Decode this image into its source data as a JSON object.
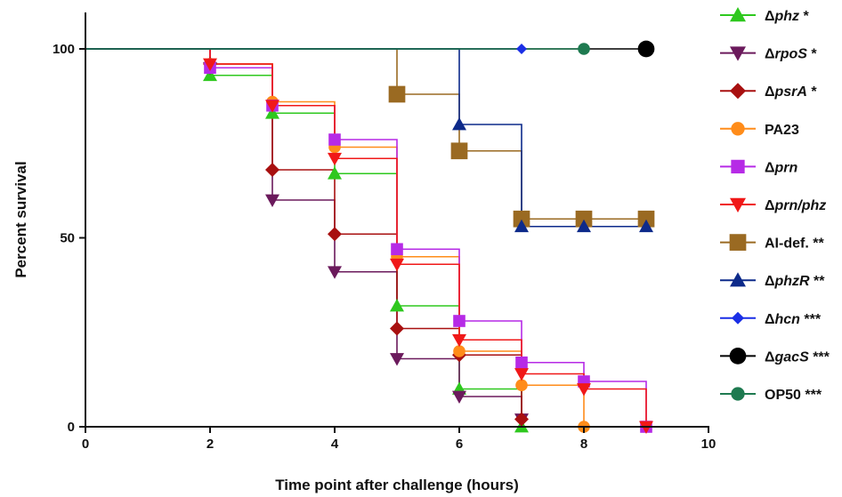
{
  "chart_data": {
    "type": "line",
    "subtype": "kaplan-meier step",
    "title": "",
    "xlabel": "Time point after challenge (hours)",
    "ylabel": "Percent survival",
    "xlim": [
      0,
      10
    ],
    "ylim": [
      0,
      100
    ],
    "xticks": [
      0,
      2,
      4,
      6,
      8,
      10
    ],
    "yticks": [
      0,
      50,
      100
    ],
    "grid": false,
    "legend_position": "right",
    "series": [
      {
        "name": "Δphz *",
        "prefix": "Δ",
        "italic": "phz",
        "suffix": " *",
        "color": "#2ec81e",
        "marker": "triangle-up",
        "points": [
          [
            0,
            100
          ],
          [
            2,
            93
          ],
          [
            3,
            83
          ],
          [
            4,
            67
          ],
          [
            5,
            32
          ],
          [
            6,
            10
          ],
          [
            7,
            0
          ]
        ]
      },
      {
        "name": "ΔrpoS *",
        "prefix": "Δ",
        "italic": "rpoS",
        "suffix": " *",
        "color": "#6b1a5c",
        "marker": "triangle-down",
        "points": [
          [
            0,
            100
          ],
          [
            2,
            95
          ],
          [
            3,
            60
          ],
          [
            4,
            41
          ],
          [
            5,
            18
          ],
          [
            6,
            8
          ],
          [
            7,
            2
          ]
        ]
      },
      {
        "name": "ΔpsrA *",
        "prefix": "Δ",
        "italic": "psrA",
        "suffix": " *",
        "color": "#a81010",
        "marker": "diamond",
        "points": [
          [
            0,
            100
          ],
          [
            2,
            96
          ],
          [
            3,
            68
          ],
          [
            4,
            51
          ],
          [
            5,
            26
          ],
          [
            6,
            19
          ],
          [
            7,
            2
          ]
        ]
      },
      {
        "name": "PA23",
        "prefix": "",
        "italic": "",
        "suffix": "PA23",
        "color": "#ff8c1a",
        "marker": "circle",
        "points": [
          [
            0,
            100
          ],
          [
            2,
            96
          ],
          [
            3,
            86
          ],
          [
            4,
            74
          ],
          [
            5,
            45
          ],
          [
            6,
            20
          ],
          [
            7,
            11
          ],
          [
            8,
            0
          ]
        ]
      },
      {
        "name": "Δprn",
        "prefix": "Δ",
        "italic": "prn",
        "suffix": "",
        "color": "#b62ae6",
        "marker": "square",
        "points": [
          [
            0,
            100
          ],
          [
            2,
            95
          ],
          [
            3,
            85
          ],
          [
            4,
            76
          ],
          [
            5,
            47
          ],
          [
            6,
            28
          ],
          [
            7,
            17
          ],
          [
            8,
            12
          ],
          [
            9,
            0
          ]
        ]
      },
      {
        "name": "Δprn/phz",
        "prefix": "Δ",
        "italic": "prn/phz",
        "suffix": "",
        "color": "#f01818",
        "marker": "triangle-down",
        "points": [
          [
            0,
            100
          ],
          [
            2,
            96
          ],
          [
            3,
            85
          ],
          [
            4,
            71
          ],
          [
            5,
            43
          ],
          [
            6,
            23
          ],
          [
            7,
            14
          ],
          [
            8,
            10
          ],
          [
            9,
            0
          ]
        ]
      },
      {
        "name": "AI-def. **",
        "prefix": "",
        "italic": "",
        "suffix": "AI-def. **",
        "color": "#9a6a22",
        "marker": "square",
        "points": [
          [
            0,
            100
          ],
          [
            5,
            88
          ],
          [
            6,
            73
          ],
          [
            7,
            55
          ],
          [
            8,
            55
          ],
          [
            9,
            55
          ]
        ]
      },
      {
        "name": "ΔphzR **",
        "prefix": "Δ",
        "italic": "phzR",
        "suffix": " **",
        "color": "#0d2a8a",
        "marker": "triangle-up",
        "points": [
          [
            0,
            100
          ],
          [
            6,
            80
          ],
          [
            7,
            53
          ],
          [
            8,
            53
          ],
          [
            9,
            53
          ]
        ]
      },
      {
        "name": "Δhcn ***",
        "prefix": "Δ",
        "italic": "hcn",
        "suffix": " ***",
        "color": "#1a2fe6",
        "marker": "diamond",
        "points": [
          [
            0,
            100
          ],
          [
            7,
            100
          ]
        ]
      },
      {
        "name": "ΔgacS ***",
        "prefix": "Δ",
        "italic": "gacS",
        "suffix": " ***",
        "color": "#000000",
        "marker": "circle",
        "points": [
          [
            0,
            100
          ],
          [
            9,
            100
          ]
        ]
      },
      {
        "name": "OP50 ***",
        "prefix": "",
        "italic": "",
        "suffix": "OP50 ***",
        "color": "#1e7a50",
        "marker": "circle",
        "points": [
          [
            0,
            100
          ],
          [
            8,
            100
          ]
        ]
      }
    ]
  }
}
